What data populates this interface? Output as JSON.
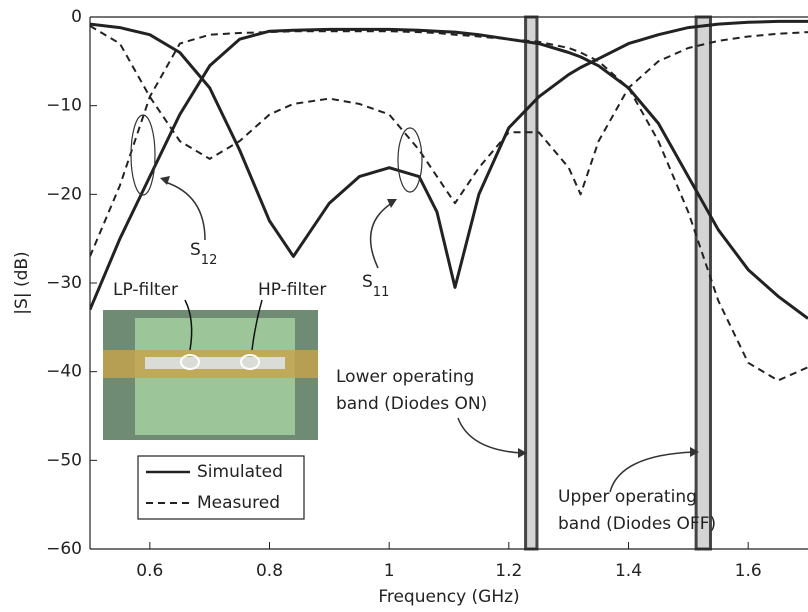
{
  "chart_data": {
    "type": "line",
    "x_label": "Frequency (GHz)",
    "y_label": "|S| (dB)",
    "x": [
      0.5,
      0.55,
      0.6,
      0.65,
      0.7,
      0.75,
      0.8,
      0.84,
      0.9,
      0.95,
      1.0,
      1.05,
      1.08,
      1.11,
      1.15,
      1.2,
      1.25,
      1.3,
      1.32,
      1.35,
      1.4,
      1.45,
      1.5,
      1.55,
      1.6,
      1.65,
      1.7
    ],
    "xlim": [
      0.5,
      1.7
    ],
    "xticks": [
      0.6,
      0.8,
      1,
      1.2,
      1.4,
      1.6
    ],
    "ylim": [
      -60,
      0
    ],
    "yticks": [
      {
        "value": -60,
        "label": "−60"
      },
      {
        "value": -50,
        "label": "−50"
      },
      {
        "value": -40,
        "label": "−40"
      },
      {
        "value": -30,
        "label": "−30"
      },
      {
        "value": -20,
        "label": "−20"
      },
      {
        "value": -10,
        "label": "−10"
      },
      0
    ],
    "series": [
      {
        "color": "#222222",
        "dash": false,
        "values": [
          -0.8,
          -1.2,
          -2,
          -4,
          -8,
          -15,
          -23,
          -27,
          -21,
          -18,
          -17,
          -18,
          -22,
          -30.5,
          -20,
          -12.5,
          -9,
          -6.5,
          -5.7,
          -4.7,
          -3,
          -2,
          -1.2,
          -0.8,
          -0.6,
          -0.5,
          -0.5
        ]
      },
      {
        "color": "#222222",
        "dash": false,
        "values": [
          -33,
          -25,
          -18,
          -11,
          -5.5,
          -2.5,
          -1.6,
          -1.5,
          -1.4,
          -1.4,
          -1.4,
          -1.5,
          -1.6,
          -1.7,
          -2,
          -2.5,
          -3,
          -4,
          -4.5,
          -5.5,
          -8,
          -12,
          -18,
          -24,
          -28.5,
          -31.5,
          -34
        ]
      },
      {
        "color": "#222222",
        "dash": true,
        "values": [
          -27,
          -19,
          -9,
          -3,
          -2,
          -1.8,
          -1.7,
          -1.6,
          -1.6,
          -1.6,
          -1.6,
          -1.7,
          -1.8,
          -2,
          -2.2,
          -2.5,
          -2.8,
          -3.5,
          -4,
          -5,
          -8,
          -14,
          -22,
          -32,
          -39,
          -41,
          -39.5
        ]
      },
      {
        "color": "#222222",
        "dash": true,
        "values": [
          -1,
          -3,
          -9,
          -14,
          -16,
          -14,
          -11,
          -9.8,
          -9.2,
          -9.8,
          -11,
          -15,
          -18,
          -21,
          -17,
          -13,
          -13,
          -17,
          -20,
          -14,
          -8,
          -5,
          -3.5,
          -2.7,
          -2.2,
          -1.9,
          -1.7
        ]
      }
    ],
    "bands": [
      [
        1.228,
        1.247
      ],
      [
        1.513,
        1.537
      ]
    ],
    "legend": [
      {
        "label": "Simulated",
        "dash": false
      },
      {
        "label": "Measured",
        "dash": true
      }
    ],
    "annotations": [
      {
        "text": "S",
        "sub": "12"
      },
      {
        "text": "S",
        "sub": "11"
      },
      {
        "text": "LP-filter"
      },
      {
        "text": "HP-filter"
      },
      {
        "text": "Lower operating",
        "text2": "band (Diodes ON)"
      },
      {
        "text": "Upper operating",
        "text2": "band (Diodes OFF)"
      }
    ]
  }
}
